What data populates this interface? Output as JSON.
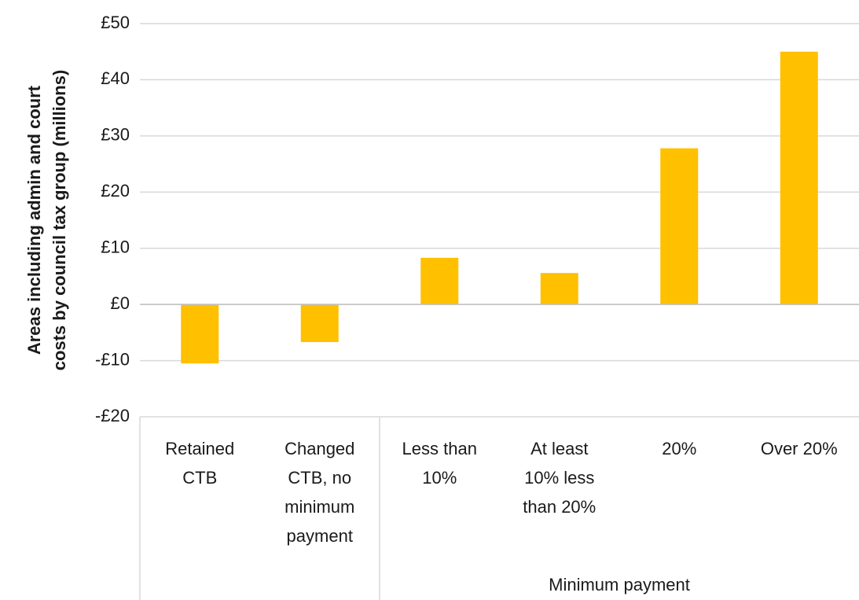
{
  "chart_data": {
    "type": "bar",
    "y_label": [
      "Areas including admin and court",
      "costs by council tax group (millions)"
    ],
    "categories": [
      [
        "Retained",
        "CTB"
      ],
      [
        "Changed",
        "CTB, no",
        "minimum",
        "payment"
      ],
      [
        "Less than",
        "10%"
      ],
      [
        "At least",
        "10% less",
        "than 20%"
      ],
      [
        "20%"
      ],
      [
        "Over 20%"
      ]
    ],
    "category_groups": [
      null,
      null,
      "Minimum payment",
      "Minimum payment",
      "Minimum payment",
      "Minimum payment"
    ],
    "values": [
      -10.5,
      -6.7,
      8.3,
      5.6,
      27.8,
      45
    ],
    "color": "#ffc000",
    "ylim": [
      -20,
      50
    ],
    "yticks": [
      {
        "value": -20,
        "label": "-£20"
      },
      {
        "value": -10,
        "label": "-£10"
      },
      {
        "value": 0,
        "label": "£0"
      },
      {
        "value": 10,
        "label": "£10"
      },
      {
        "value": 20,
        "label": "£20"
      },
      {
        "value": 30,
        "label": "£30"
      },
      {
        "value": 40,
        "label": "£40"
      },
      {
        "value": 50,
        "label": "£50"
      }
    ],
    "grid": true
  }
}
